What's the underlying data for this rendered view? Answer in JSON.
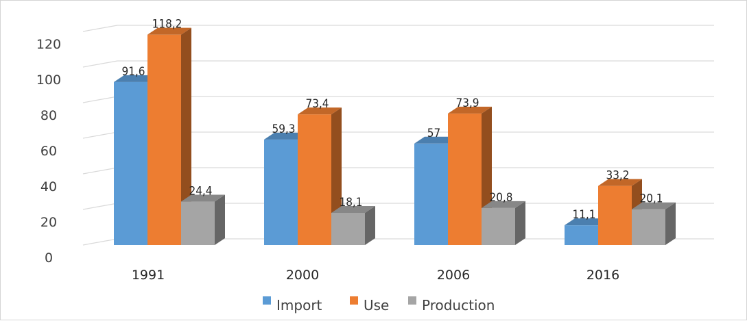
{
  "chart_data": {
    "type": "bar",
    "categories": [
      "1991",
      "2000",
      "2006",
      "2016"
    ],
    "series": [
      {
        "name": "Import",
        "values": [
          91.6,
          59.3,
          57,
          11.1
        ],
        "labels": [
          "91,6",
          "59,3",
          "57",
          "11,1"
        ],
        "color": "#5b9bd5"
      },
      {
        "name": "Use",
        "values": [
          118.2,
          73.4,
          73.9,
          33.2
        ],
        "labels": [
          "118,2",
          "73,4",
          "73,9",
          "33,2"
        ],
        "color": "#ed7d31"
      },
      {
        "name": "Production",
        "values": [
          24.4,
          18.1,
          20.8,
          20.1
        ],
        "labels": [
          "24,4",
          "18,1",
          "20,8",
          "20,1"
        ],
        "color": "#a5a5a5"
      }
    ],
    "yticks": [
      "0",
      "20",
      "40",
      "60",
      "80",
      "100",
      "120"
    ],
    "ylim": [
      0,
      140
    ],
    "grid": true,
    "legend_position": "bottom",
    "style": "3d-clustered-column"
  }
}
